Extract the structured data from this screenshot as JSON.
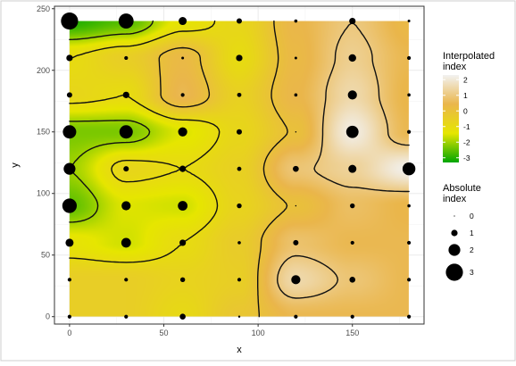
{
  "chart_data": {
    "type": "heatmap",
    "xlabel": "x",
    "ylabel": "y",
    "xlim": [
      -8,
      188
    ],
    "ylim": [
      -6,
      252
    ],
    "x_ticks": [
      0,
      50,
      100,
      150
    ],
    "y_ticks": [
      0,
      50,
      100,
      150,
      200,
      250
    ],
    "grid": true,
    "fill_extent": {
      "x": [
        0,
        180
      ],
      "y": [
        0,
        240
      ]
    },
    "color_scale": {
      "title": "Interpolated\nindex",
      "breaks": [
        2,
        1,
        0,
        -1,
        -2,
        -3
      ],
      "range": [
        -3.3,
        2.3
      ],
      "colors": [
        "#00a600",
        "#e6e600",
        "#eab64b",
        "#f2f2f2"
      ]
    },
    "size_scale": {
      "title": "Absolute\nindex",
      "breaks": [
        0,
        1,
        2,
        3
      ]
    },
    "contour_levels": [
      -2,
      -1,
      0,
      1
    ],
    "legend_position": "right",
    "x_values": [
      0,
      30,
      60,
      90,
      120,
      150,
      180
    ],
    "y_values": [
      0,
      30,
      60,
      90,
      120,
      150,
      180,
      210,
      240
    ],
    "points": [
      {
        "x": 0,
        "y": 0,
        "index": -0.5
      },
      {
        "x": 30,
        "y": 0,
        "index": -0.5
      },
      {
        "x": 60,
        "y": 0,
        "index": -0.9
      },
      {
        "x": 90,
        "y": 0,
        "index": -0.2
      },
      {
        "x": 120,
        "y": 0,
        "index": 0.5
      },
      {
        "x": 150,
        "y": 0,
        "index": 0.5
      },
      {
        "x": 180,
        "y": 0,
        "index": 0.5
      },
      {
        "x": 0,
        "y": 30,
        "index": -0.5
      },
      {
        "x": 30,
        "y": 30,
        "index": -0.5
      },
      {
        "x": 60,
        "y": 30,
        "index": -0.7
      },
      {
        "x": 90,
        "y": 30,
        "index": -0.5
      },
      {
        "x": 120,
        "y": 30,
        "index": 1.5
      },
      {
        "x": 150,
        "y": 30,
        "index": 0.9
      },
      {
        "x": 180,
        "y": 30,
        "index": 0.5
      },
      {
        "x": 0,
        "y": 60,
        "index": -1.3
      },
      {
        "x": 30,
        "y": 60,
        "index": -1.6
      },
      {
        "x": 60,
        "y": 60,
        "index": -1.0
      },
      {
        "x": 90,
        "y": 60,
        "index": -0.4
      },
      {
        "x": 120,
        "y": 60,
        "index": 0.8
      },
      {
        "x": 150,
        "y": 60,
        "index": 0.5
      },
      {
        "x": 180,
        "y": 60,
        "index": 0.5
      },
      {
        "x": 0,
        "y": 90,
        "index": -2.5
      },
      {
        "x": 30,
        "y": 90,
        "index": -1.5
      },
      {
        "x": 60,
        "y": 90,
        "index": -1.6
      },
      {
        "x": 90,
        "y": 90,
        "index": -0.7
      },
      {
        "x": 120,
        "y": 90,
        "index": 0.05
      },
      {
        "x": 150,
        "y": 90,
        "index": 0.7
      },
      {
        "x": 180,
        "y": 90,
        "index": 0.4
      },
      {
        "x": 0,
        "y": 120,
        "index": -2.0
      },
      {
        "x": 30,
        "y": 120,
        "index": -0.8
      },
      {
        "x": 60,
        "y": 120,
        "index": -1.0
      },
      {
        "x": 90,
        "y": 120,
        "index": -0.6
      },
      {
        "x": 120,
        "y": 120,
        "index": 0.9
      },
      {
        "x": 150,
        "y": 120,
        "index": 1.3
      },
      {
        "x": 180,
        "y": 120,
        "index": 2.2
      },
      {
        "x": 0,
        "y": 150,
        "index": -2.3
      },
      {
        "x": 30,
        "y": 150,
        "index": -2.3
      },
      {
        "x": 60,
        "y": 150,
        "index": -1.5
      },
      {
        "x": 90,
        "y": 150,
        "index": -0.8
      },
      {
        "x": 120,
        "y": 150,
        "index": 0.05
      },
      {
        "x": 150,
        "y": 150,
        "index": 2.1
      },
      {
        "x": 180,
        "y": 150,
        "index": 0.5
      },
      {
        "x": 0,
        "y": 180,
        "index": -0.8
      },
      {
        "x": 30,
        "y": 180,
        "index": -1.0
      },
      {
        "x": 60,
        "y": 180,
        "index": 0.5
      },
      {
        "x": 90,
        "y": 180,
        "index": -0.6
      },
      {
        "x": 120,
        "y": 180,
        "index": 0.4
      },
      {
        "x": 150,
        "y": 180,
        "index": 1.5
      },
      {
        "x": 180,
        "y": 180,
        "index": 0.4
      },
      {
        "x": 0,
        "y": 210,
        "index": -1.0
      },
      {
        "x": 30,
        "y": 210,
        "index": -0.5
      },
      {
        "x": 60,
        "y": 210,
        "index": 0.3
      },
      {
        "x": 90,
        "y": 210,
        "index": -1.0
      },
      {
        "x": 120,
        "y": 210,
        "index": 0.3
      },
      {
        "x": 150,
        "y": 210,
        "index": 1.2
      },
      {
        "x": 180,
        "y": 210,
        "index": 0.5
      },
      {
        "x": 0,
        "y": 240,
        "index": -3.0
      },
      {
        "x": 30,
        "y": 240,
        "index": -2.6
      },
      {
        "x": 60,
        "y": 240,
        "index": -1.3
      },
      {
        "x": 90,
        "y": 240,
        "index": -0.8
      },
      {
        "x": 120,
        "y": 240,
        "index": 0.4
      },
      {
        "x": 150,
        "y": 240,
        "index": 1.0
      },
      {
        "x": 180,
        "y": 240,
        "index": 0.3
      }
    ]
  }
}
